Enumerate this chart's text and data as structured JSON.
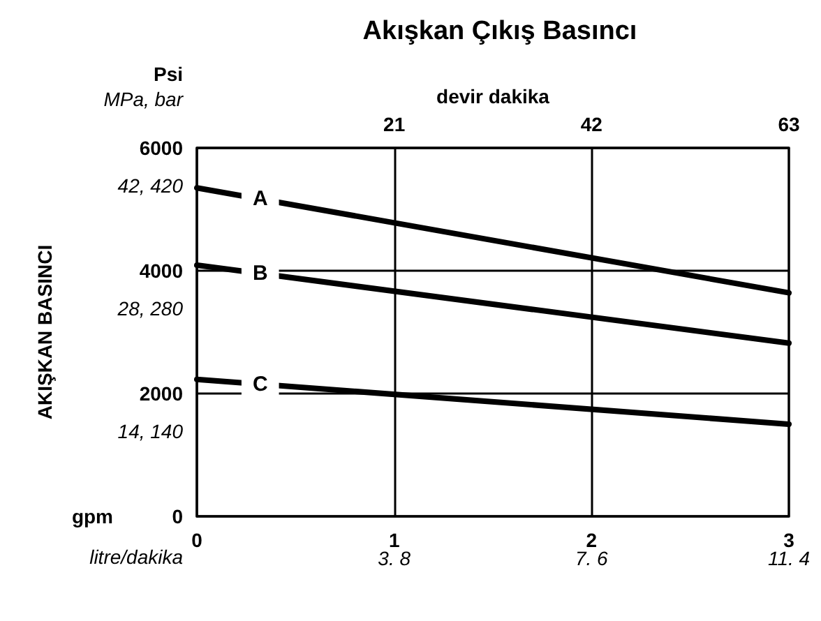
{
  "chart_data": {
    "type": "line",
    "title": "Akışkan Çıkış Basıncı",
    "ylabel": "AKIŞKAN BASINCI",
    "xlabel": "gpm",
    "x2label": "devir dakika",
    "annotations": [
      "Psi",
      "MPa, bar",
      "litre/dakika",
      "42, 420",
      "28, 280",
      "14, 140",
      "3. 8",
      "7. 6",
      "11. 4"
    ],
    "x": [
      0,
      3
    ],
    "series": [
      {
        "name": "A",
        "color": "#000000",
        "values": [
          5350,
          3640
        ]
      },
      {
        "name": "B",
        "color": "#000000",
        "values": [
          4090,
          2820
        ]
      },
      {
        "name": "C",
        "color": "#000000",
        "values": [
          2230,
          1500
        ]
      }
    ],
    "xlim": [
      0,
      3
    ],
    "xticks": [
      0,
      1,
      2,
      3
    ],
    "x2lim": [
      0,
      63
    ],
    "x2ticks": [
      21,
      42,
      63
    ],
    "ylim": [
      0,
      6000
    ],
    "yticks": [
      0,
      2000,
      4000,
      6000
    ],
    "grid": true,
    "legend": false,
    "marker": "none",
    "line_style": "solid"
  }
}
